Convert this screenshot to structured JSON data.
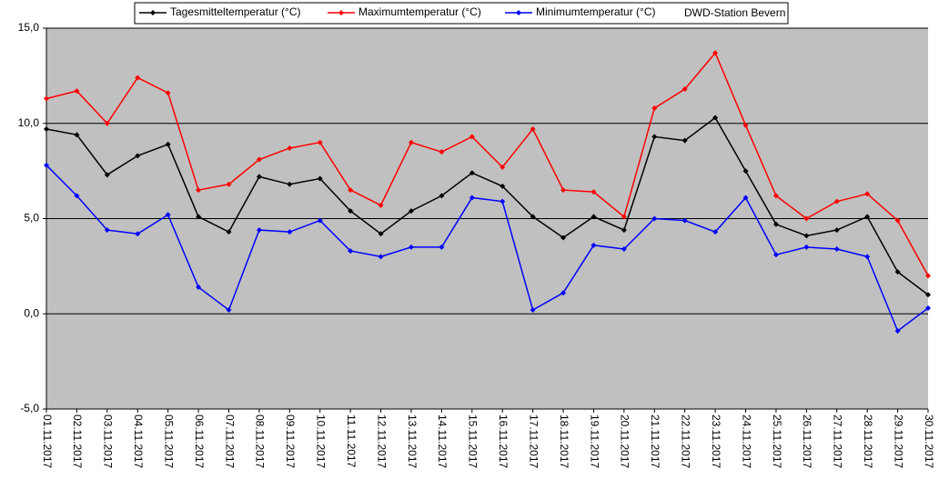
{
  "chart_data": {
    "type": "line",
    "categories": [
      "01.11.2017",
      "02.11.2017",
      "03.11.2017",
      "04.11.2017",
      "05.11.2017",
      "06.11.2017",
      "07.11.2017",
      "08.11.2017",
      "09.11.2017",
      "10.11.2017",
      "11.11.2017",
      "12.11.2017",
      "13.11.2017",
      "14.11.2017",
      "15.11.2017",
      "16.11.2017",
      "17.11.2017",
      "18.11.2017",
      "19.11.2017",
      "20.11.2017",
      "21.11.2017",
      "22.11.2017",
      "23.11.2017",
      "24.11.2017",
      "25.11.2017",
      "26.11.2017",
      "27.11.2017",
      "28.11.2017",
      "29.11.2017",
      "30.11.2017"
    ],
    "series": [
      {
        "name": "Tagesmitteltemperatur (°C)",
        "color": "#000000",
        "values": [
          9.7,
          9.4,
          7.3,
          8.3,
          8.9,
          5.1,
          4.3,
          7.2,
          6.8,
          7.1,
          5.4,
          4.2,
          5.4,
          6.2,
          7.4,
          6.7,
          5.1,
          4.0,
          5.1,
          4.4,
          9.3,
          9.1,
          10.3,
          7.5,
          4.7,
          4.1,
          4.4,
          5.1,
          2.2,
          1.0
        ]
      },
      {
        "name": "Maximumtemperatur (°C)",
        "color": "#ff0000",
        "values": [
          11.3,
          11.7,
          10.0,
          12.4,
          11.6,
          6.5,
          6.8,
          8.1,
          8.7,
          9.0,
          6.5,
          5.7,
          9.0,
          8.5,
          9.3,
          7.7,
          9.7,
          6.5,
          6.4,
          5.1,
          10.8,
          11.8,
          13.7,
          9.9,
          6.2,
          5.0,
          5.9,
          6.3,
          4.9,
          2.0
        ]
      },
      {
        "name": "Minimumtemperatur (°C)",
        "color": "#0000ff",
        "values": [
          7.8,
          6.2,
          4.4,
          4.2,
          5.2,
          1.4,
          0.2,
          4.4,
          4.3,
          4.9,
          3.3,
          3.0,
          3.5,
          3.5,
          6.1,
          5.9,
          0.2,
          1.1,
          3.6,
          3.4,
          5.0,
          4.9,
          4.3,
          6.1,
          3.1,
          3.5,
          3.4,
          3.0,
          -0.9,
          0.3
        ]
      }
    ],
    "annotation": "DWD-Station Bevern",
    "ylim": [
      -5,
      15
    ],
    "yticks": [
      {
        "value": -5,
        "label": "-5,0"
      },
      {
        "value": 0,
        "label": "0,0"
      },
      {
        "value": 5,
        "label": "5,0"
      },
      {
        "value": 10,
        "label": "10,0"
      },
      {
        "value": 15,
        "label": "15,0"
      }
    ],
    "grid": true,
    "plot_background": "#c0c0c0"
  }
}
